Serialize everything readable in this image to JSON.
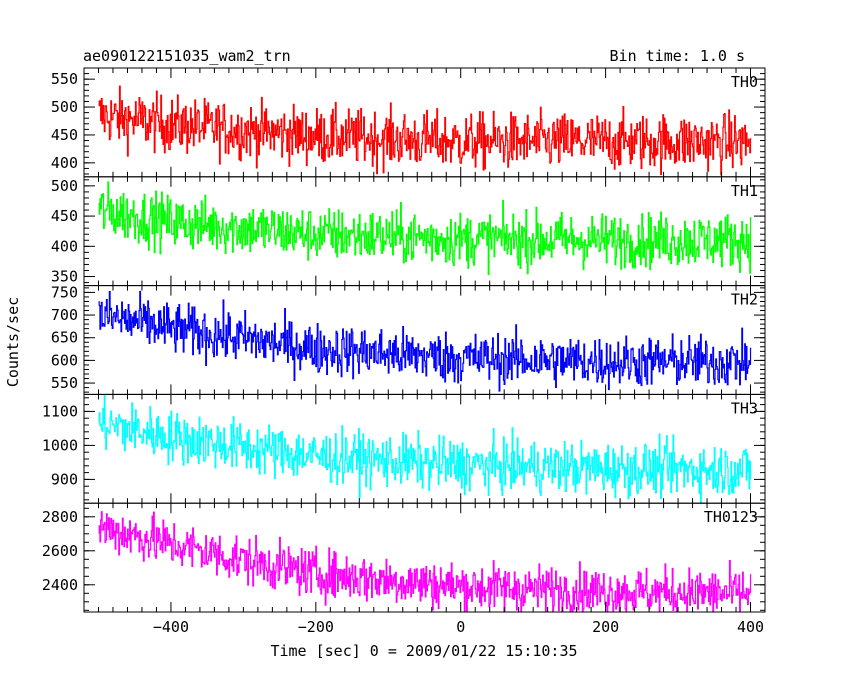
{
  "header": {
    "title": "ae090122151035_wam2_trn",
    "bin_time": "Bin time: 1.0 s"
  },
  "axes": {
    "xlabel": "Time [sec] 0 = 2009/01/22 15:10:35",
    "ylabel": "Counts/sec",
    "xlim": [
      -520,
      420
    ],
    "xticks": [
      -400,
      -200,
      0,
      200,
      400
    ],
    "xtick_labels": [
      "−400",
      "−200",
      "0",
      "200",
      "400"
    ],
    "x_minor_step": 20,
    "bin_time_s": 1.0,
    "grid": false
  },
  "chart_data": [
    {
      "type": "line",
      "name": "TH0",
      "color": "#ff0000",
      "x_range": [
        -500,
        400
      ],
      "ylim": [
        375,
        570
      ],
      "yticks": [
        400,
        450,
        500,
        550
      ],
      "y_minor_step": 10,
      "trend": {
        "x": [
          -500,
          -400,
          -300,
          -200,
          0,
          200,
          400
        ],
        "y": [
          485,
          468,
          458,
          448,
          438,
          438,
          437
        ]
      },
      "noise_sd": 25
    },
    {
      "type": "line",
      "name": "TH1",
      "color": "#00ff00",
      "x_range": [
        -500,
        400
      ],
      "ylim": [
        335,
        515
      ],
      "yticks": [
        350,
        400,
        450,
        500
      ],
      "y_minor_step": 10,
      "trend": {
        "x": [
          -500,
          -400,
          -300,
          -200,
          0,
          200,
          400
        ],
        "y": [
          460,
          440,
          430,
          420,
          412,
          410,
          410
        ]
      },
      "noise_sd": 22
    },
    {
      "type": "line",
      "name": "TH2",
      "color": "#0000ff",
      "x_range": [
        -500,
        400
      ],
      "ylim": [
        525,
        765
      ],
      "yticks": [
        550,
        600,
        650,
        700,
        750
      ],
      "y_minor_step": 10,
      "trend": {
        "x": [
          -500,
          -400,
          -300,
          -200,
          0,
          200,
          400
        ],
        "y": [
          700,
          670,
          648,
          625,
          605,
          597,
          597
        ]
      },
      "noise_sd": 28
    },
    {
      "type": "line",
      "name": "TH3",
      "color": "#00ffff",
      "x_range": [
        -500,
        400
      ],
      "ylim": [
        830,
        1150
      ],
      "yticks": [
        900,
        1000,
        1100
      ],
      "y_minor_step": 20,
      "trend": {
        "x": [
          -500,
          -400,
          -300,
          -200,
          0,
          200,
          400
        ],
        "y": [
          1065,
          1025,
          995,
          968,
          942,
          932,
          928
        ]
      },
      "noise_sd": 38
    },
    {
      "type": "line",
      "name": "TH0123",
      "color": "#ff00ff",
      "x_range": [
        -500,
        400
      ],
      "ylim": [
        2240,
        2880
      ],
      "yticks": [
        2400,
        2600,
        2800
      ],
      "y_minor_step": 50,
      "trend": {
        "x": [
          -500,
          -400,
          -300,
          -200,
          0,
          200,
          400
        ],
        "y": [
          2740,
          2640,
          2545,
          2465,
          2390,
          2360,
          2350
        ]
      },
      "noise_sd": 70
    }
  ]
}
